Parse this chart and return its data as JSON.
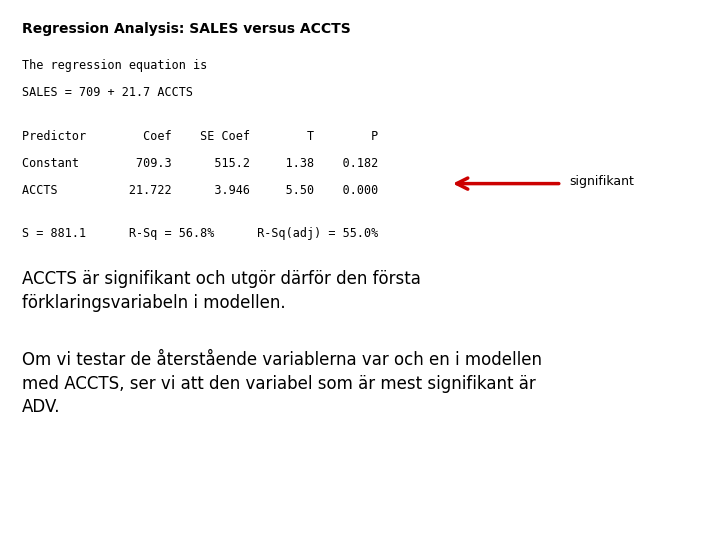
{
  "title": "Regression Analysis: SALES versus ACCTS",
  "line1": "The regression equation is",
  "line2": "SALES = 709 + 21.7 ACCTS",
  "table_header": "Predictor        Coef    SE Coef        T        P",
  "row1": "Constant        709.3      515.2     1.38    0.182",
  "row2": "ACCTS          21.722      3.946     5.50    0.000",
  "stats": "S = 881.1      R-Sq = 56.8%      R-Sq(adj) = 55.0%",
  "annotation": "signifikant",
  "para1": "ACCTS är signifikant och utgör därför den första\nförklaringsvariabeln i modellen.",
  "para2": "Om vi testar de återstående variablerna var och en i modellen\nmed ACCTS, ser vi att den variabel som är mest signifikant är\nADV.",
  "bg_color": "#ffffff",
  "title_color": "#000000",
  "mono_color": "#000000",
  "arrow_color": "#cc0000",
  "annot_color": "#000000",
  "para_color": "#000000"
}
